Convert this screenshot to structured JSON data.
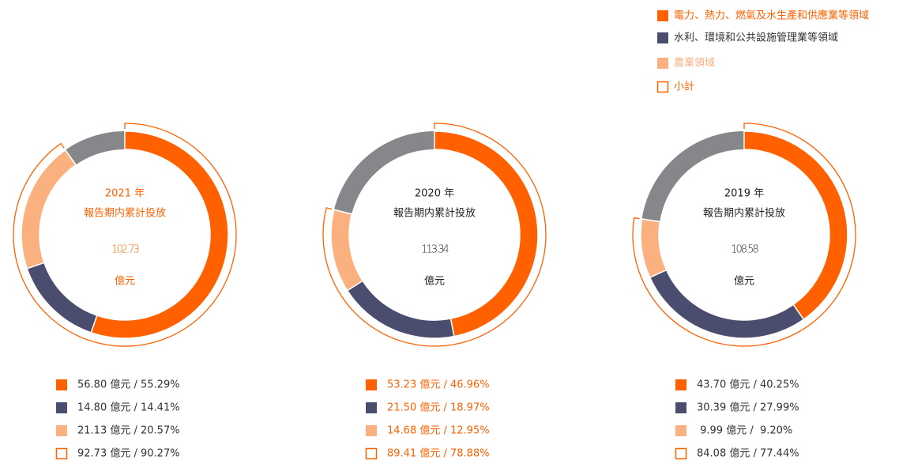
{
  "legend": [
    {
      "name": "電力、熱力、燃氣及水生產和供應業等領域",
      "color": "#ff6100",
      "text_color": "#ff6100",
      "style": "solid"
    },
    {
      "name": "水利、環境和公共設施管理業等領域",
      "color": "#4a4d6d",
      "text_color": "#333333",
      "style": "solid"
    },
    {
      "name": "農業領域",
      "color": "#fbb07f",
      "text_color": "#fbb07f",
      "style": "solid"
    },
    {
      "name": "小計",
      "color": "#ff6100",
      "text_color": "#ff6100",
      "style": "outline"
    }
  ],
  "rest_color": "#86878b",
  "chart_data": [
    {
      "type": "pie",
      "title": "2021 年",
      "subtitle": "報告期内累計投放",
      "total": 102.73,
      "unit": "億元",
      "title_color": "#ff6100",
      "label_color": "#333333",
      "values": [
        56.8,
        14.8,
        21.13
      ],
      "value_labels": [
        "56.80 億元 / 55.29%",
        "14.80 億元 / 14.41%",
        "21.13 億元 / 20.57%"
      ],
      "subtotal": 92.73,
      "subtotal_label": "92.73 億元 / 90.27%"
    },
    {
      "type": "pie",
      "title": "2020 年",
      "subtitle": "報告期内累計投放",
      "total": 113.34,
      "unit": "億元",
      "title_color": "#222222",
      "label_color": "#ff6100",
      "values": [
        53.23,
        21.5,
        14.68
      ],
      "value_labels": [
        "53.23 億元 / 46.96%",
        "21.50 億元 / 18.97%",
        "14.68 億元 / 12.95%"
      ],
      "subtotal": 89.41,
      "subtotal_label": "89.41 億元 / 78.88%"
    },
    {
      "type": "pie",
      "title": "2019 年",
      "subtitle": "報告期内累計投放",
      "total": 108.58,
      "unit": "億元",
      "title_color": "#222222",
      "label_color": "#333333",
      "values": [
        43.7,
        30.39,
        9.99
      ],
      "value_labels": [
        "43.70 億元 / 40.25%",
        "30.39 億元 / 27.99%",
        " 9.99 億元 /  9.20%"
      ],
      "subtotal": 84.08,
      "subtotal_label": "84.08 億元 / 77.44%"
    }
  ]
}
